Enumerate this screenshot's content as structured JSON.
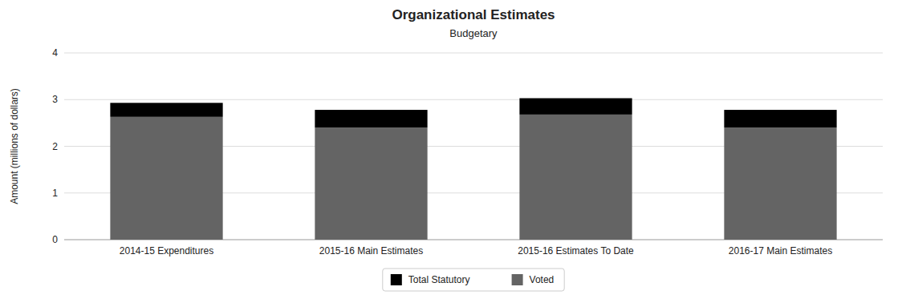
{
  "chart_data": {
    "type": "bar",
    "title": "Organizational Estimates",
    "subtitle": "Budgetary",
    "ylabel": "Amount (millions of dollars)",
    "categories": [
      "2014-15 Expenditures",
      "2015-16 Main Estimates",
      "2015-16 Estimates To Date",
      "2016-17 Main Estimates"
    ],
    "series": [
      {
        "name": "Voted",
        "color": "#646464",
        "values": [
          2.63,
          2.4,
          2.68,
          2.4
        ]
      },
      {
        "name": "Total Statutory",
        "color": "#000000",
        "values": [
          0.3,
          0.38,
          0.35,
          0.38
        ]
      }
    ],
    "stacked": true,
    "ylim": [
      0,
      4
    ],
    "yticks": [
      0,
      1,
      2,
      3,
      4
    ],
    "grid": true,
    "legend": "bottom"
  }
}
